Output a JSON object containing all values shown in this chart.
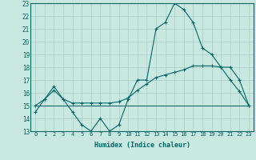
{
  "xlabel": "Humidex (Indice chaleur)",
  "bg_color": "#c8e8e0",
  "grid_color": "#a8ccc8",
  "line_color": "#006868",
  "xlim": [
    -0.5,
    23.5
  ],
  "ylim": [
    13,
    23
  ],
  "xticks": [
    0,
    1,
    2,
    3,
    4,
    5,
    6,
    7,
    8,
    9,
    10,
    11,
    12,
    13,
    14,
    15,
    16,
    17,
    18,
    19,
    20,
    21,
    22,
    23
  ],
  "yticks": [
    13,
    14,
    15,
    16,
    17,
    18,
    19,
    20,
    21,
    22,
    23
  ],
  "curve1_x": [
    0,
    1,
    2,
    3,
    4,
    5,
    6,
    7,
    8,
    9,
    10,
    11,
    12,
    13,
    14,
    15,
    16,
    17,
    18,
    19,
    20,
    21,
    22,
    23
  ],
  "curve1_y": [
    14.5,
    15.5,
    16.5,
    15.5,
    14.5,
    13.5,
    13.0,
    14.0,
    13.0,
    13.5,
    15.5,
    17.0,
    17.0,
    21.0,
    21.5,
    23.0,
    22.5,
    21.5,
    19.5,
    19.0,
    18.0,
    18.0,
    17.0,
    15.0
  ],
  "curve2_x": [
    0,
    1,
    2,
    3,
    4,
    5,
    6,
    7,
    8,
    9,
    10,
    11,
    12,
    13,
    14,
    15,
    16,
    17,
    18,
    19,
    20,
    21,
    22,
    23
  ],
  "curve2_y": [
    15.0,
    15.5,
    16.2,
    15.5,
    15.2,
    15.2,
    15.2,
    15.2,
    15.2,
    15.3,
    15.6,
    16.2,
    16.7,
    17.2,
    17.4,
    17.6,
    17.8,
    18.1,
    18.1,
    18.1,
    18.0,
    17.0,
    16.1,
    15.0
  ],
  "curve3_x": [
    0,
    1,
    2,
    3,
    4,
    5,
    6,
    7,
    8,
    9,
    10,
    11,
    12,
    13,
    14,
    15,
    16,
    17,
    18,
    19,
    20,
    21,
    22,
    23
  ],
  "curve3_y": [
    15.0,
    15.0,
    15.0,
    15.0,
    15.0,
    15.0,
    15.0,
    15.0,
    15.0,
    15.0,
    15.0,
    15.0,
    15.0,
    15.0,
    15.0,
    15.0,
    15.0,
    15.0,
    15.0,
    15.0,
    15.0,
    15.0,
    15.0,
    15.0
  ]
}
